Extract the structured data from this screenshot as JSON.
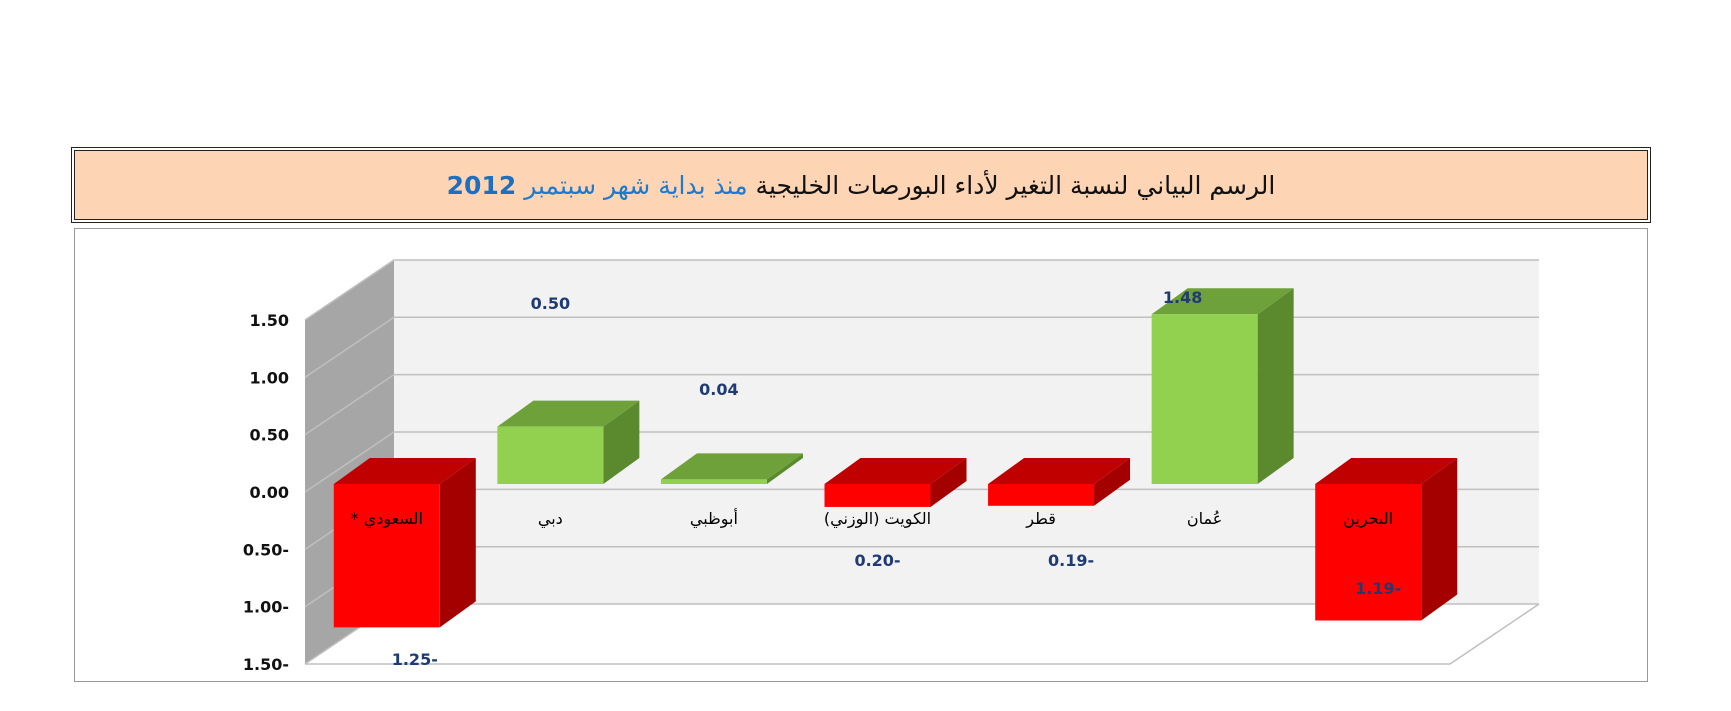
{
  "title": {
    "part_black": "الرسم البياني لنسبة التغير لأداء البورصات الخليجية",
    "part_blue": "منذ بداية شهر سبتمبر",
    "year": "2012"
  },
  "chart_data": {
    "type": "bar",
    "categories": [
      "السعودي *",
      "دبي",
      "أبوظبي",
      "الكويت  (الوزني)",
      "قطر",
      "عُمان",
      "البحرين"
    ],
    "values": [
      -1.25,
      0.5,
      0.04,
      -0.2,
      -0.19,
      1.48,
      -1.19
    ],
    "value_labels": [
      "1.25-",
      "0.50",
      "0.04",
      "0.20-",
      "0.19-",
      "1.48",
      "1.19-"
    ],
    "y_ticks": [
      1.5,
      1.0,
      0.5,
      0.0,
      -0.5,
      -1.0,
      -1.5
    ],
    "y_tick_labels": [
      "1.50",
      "1.00",
      "0.50",
      "0.00",
      "0.50-",
      "1.00-",
      "1.50-"
    ],
    "ylim": [
      -1.5,
      1.5
    ],
    "grid": true,
    "three_d": true,
    "colors": {
      "positive_front": "#92d050",
      "positive_side": "#5b8a2e",
      "positive_top": "#6ea13a",
      "negative_front": "#ff0000",
      "negative_side": "#a50000",
      "negative_top": "#c00000",
      "wall": "#a6a6a6",
      "back_wall": "#f2f2f2",
      "grid": "#bfbfbf"
    }
  }
}
